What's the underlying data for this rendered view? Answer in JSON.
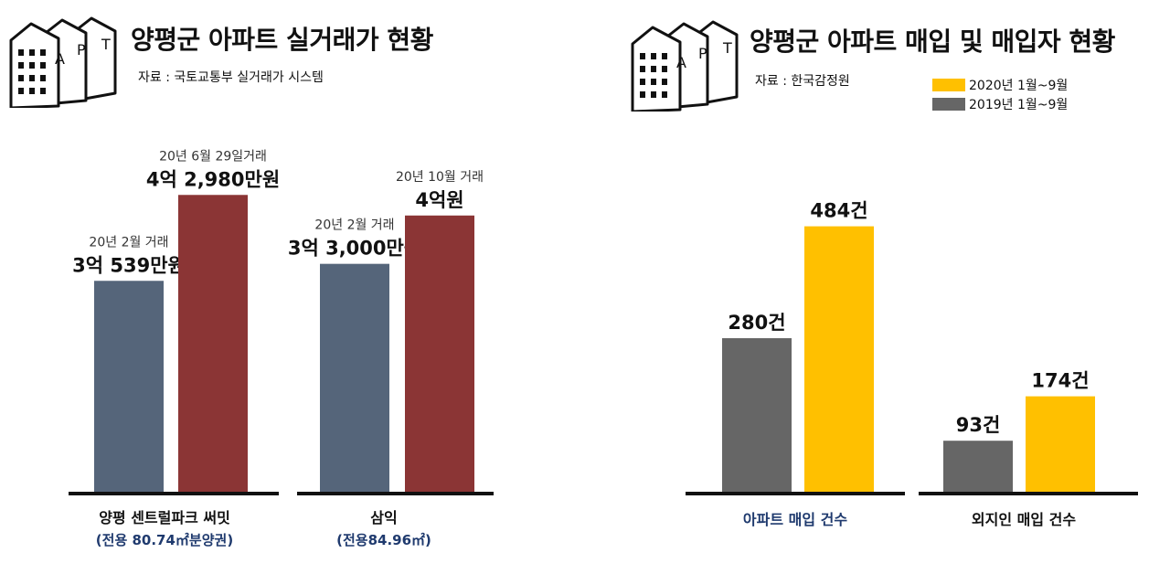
{
  "left_panel": {
    "title": "양평군 아파트 실거래가 현황",
    "source": "자료 : 국토교통부 실거래가 시스템",
    "icon_letters": [
      "A",
      "P",
      "T"
    ]
  },
  "right_panel": {
    "title": "양평군 아파트 매입 및 매입자 현황",
    "source": "자료 : 한국감정원",
    "icon_letters": [
      "A",
      "P",
      "T"
    ]
  },
  "chart_data": [
    {
      "type": "bar",
      "title": "양평군 아파트 실거래가 현황",
      "unit": "만원",
      "categories": [
        {
          "name": "양평 센트럴파크 써밋",
          "sub": "(전용 80.74㎡분양권)"
        },
        {
          "name": "삼익",
          "sub": "(전용84.96㎡)"
        }
      ],
      "bars": [
        {
          "group": 0,
          "value": 30539,
          "color": "#55657a",
          "date_label": "20년 2월 거래",
          "value_label": "3억 539만원"
        },
        {
          "group": 0,
          "value": 42980,
          "color": "#8b3535",
          "date_label": "20년 6월 29일거래",
          "value_label": "4억 2,980만원"
        },
        {
          "group": 1,
          "value": 33000,
          "color": "#55657a",
          "date_label": "20년 2월 거래",
          "value_label": "3억 3,000만원"
        },
        {
          "group": 1,
          "value": 40000,
          "color": "#8b3535",
          "date_label": "20년 10월 거래",
          "value_label": "4억원"
        }
      ],
      "ylim": [
        0,
        45000
      ],
      "grid": false
    },
    {
      "type": "bar",
      "title": "양평군 아파트 매입 및 매입자 현황",
      "unit": "건",
      "categories": [
        "아파트 매입 건수",
        "외지인 매입 건수"
      ],
      "series": [
        {
          "name": "2019년 1월~9월",
          "color": "#666666",
          "values": [
            280,
            93
          ],
          "value_labels": [
            "280건",
            "93건"
          ]
        },
        {
          "name": "2020년 1월~9월",
          "color": "#ffc000",
          "values": [
            484,
            174
          ],
          "value_labels": [
            "484건",
            "174건"
          ]
        }
      ],
      "legend_order": [
        1,
        0
      ],
      "legend_position": "top-right",
      "ylim": [
        0,
        500
      ],
      "grid": false
    }
  ]
}
